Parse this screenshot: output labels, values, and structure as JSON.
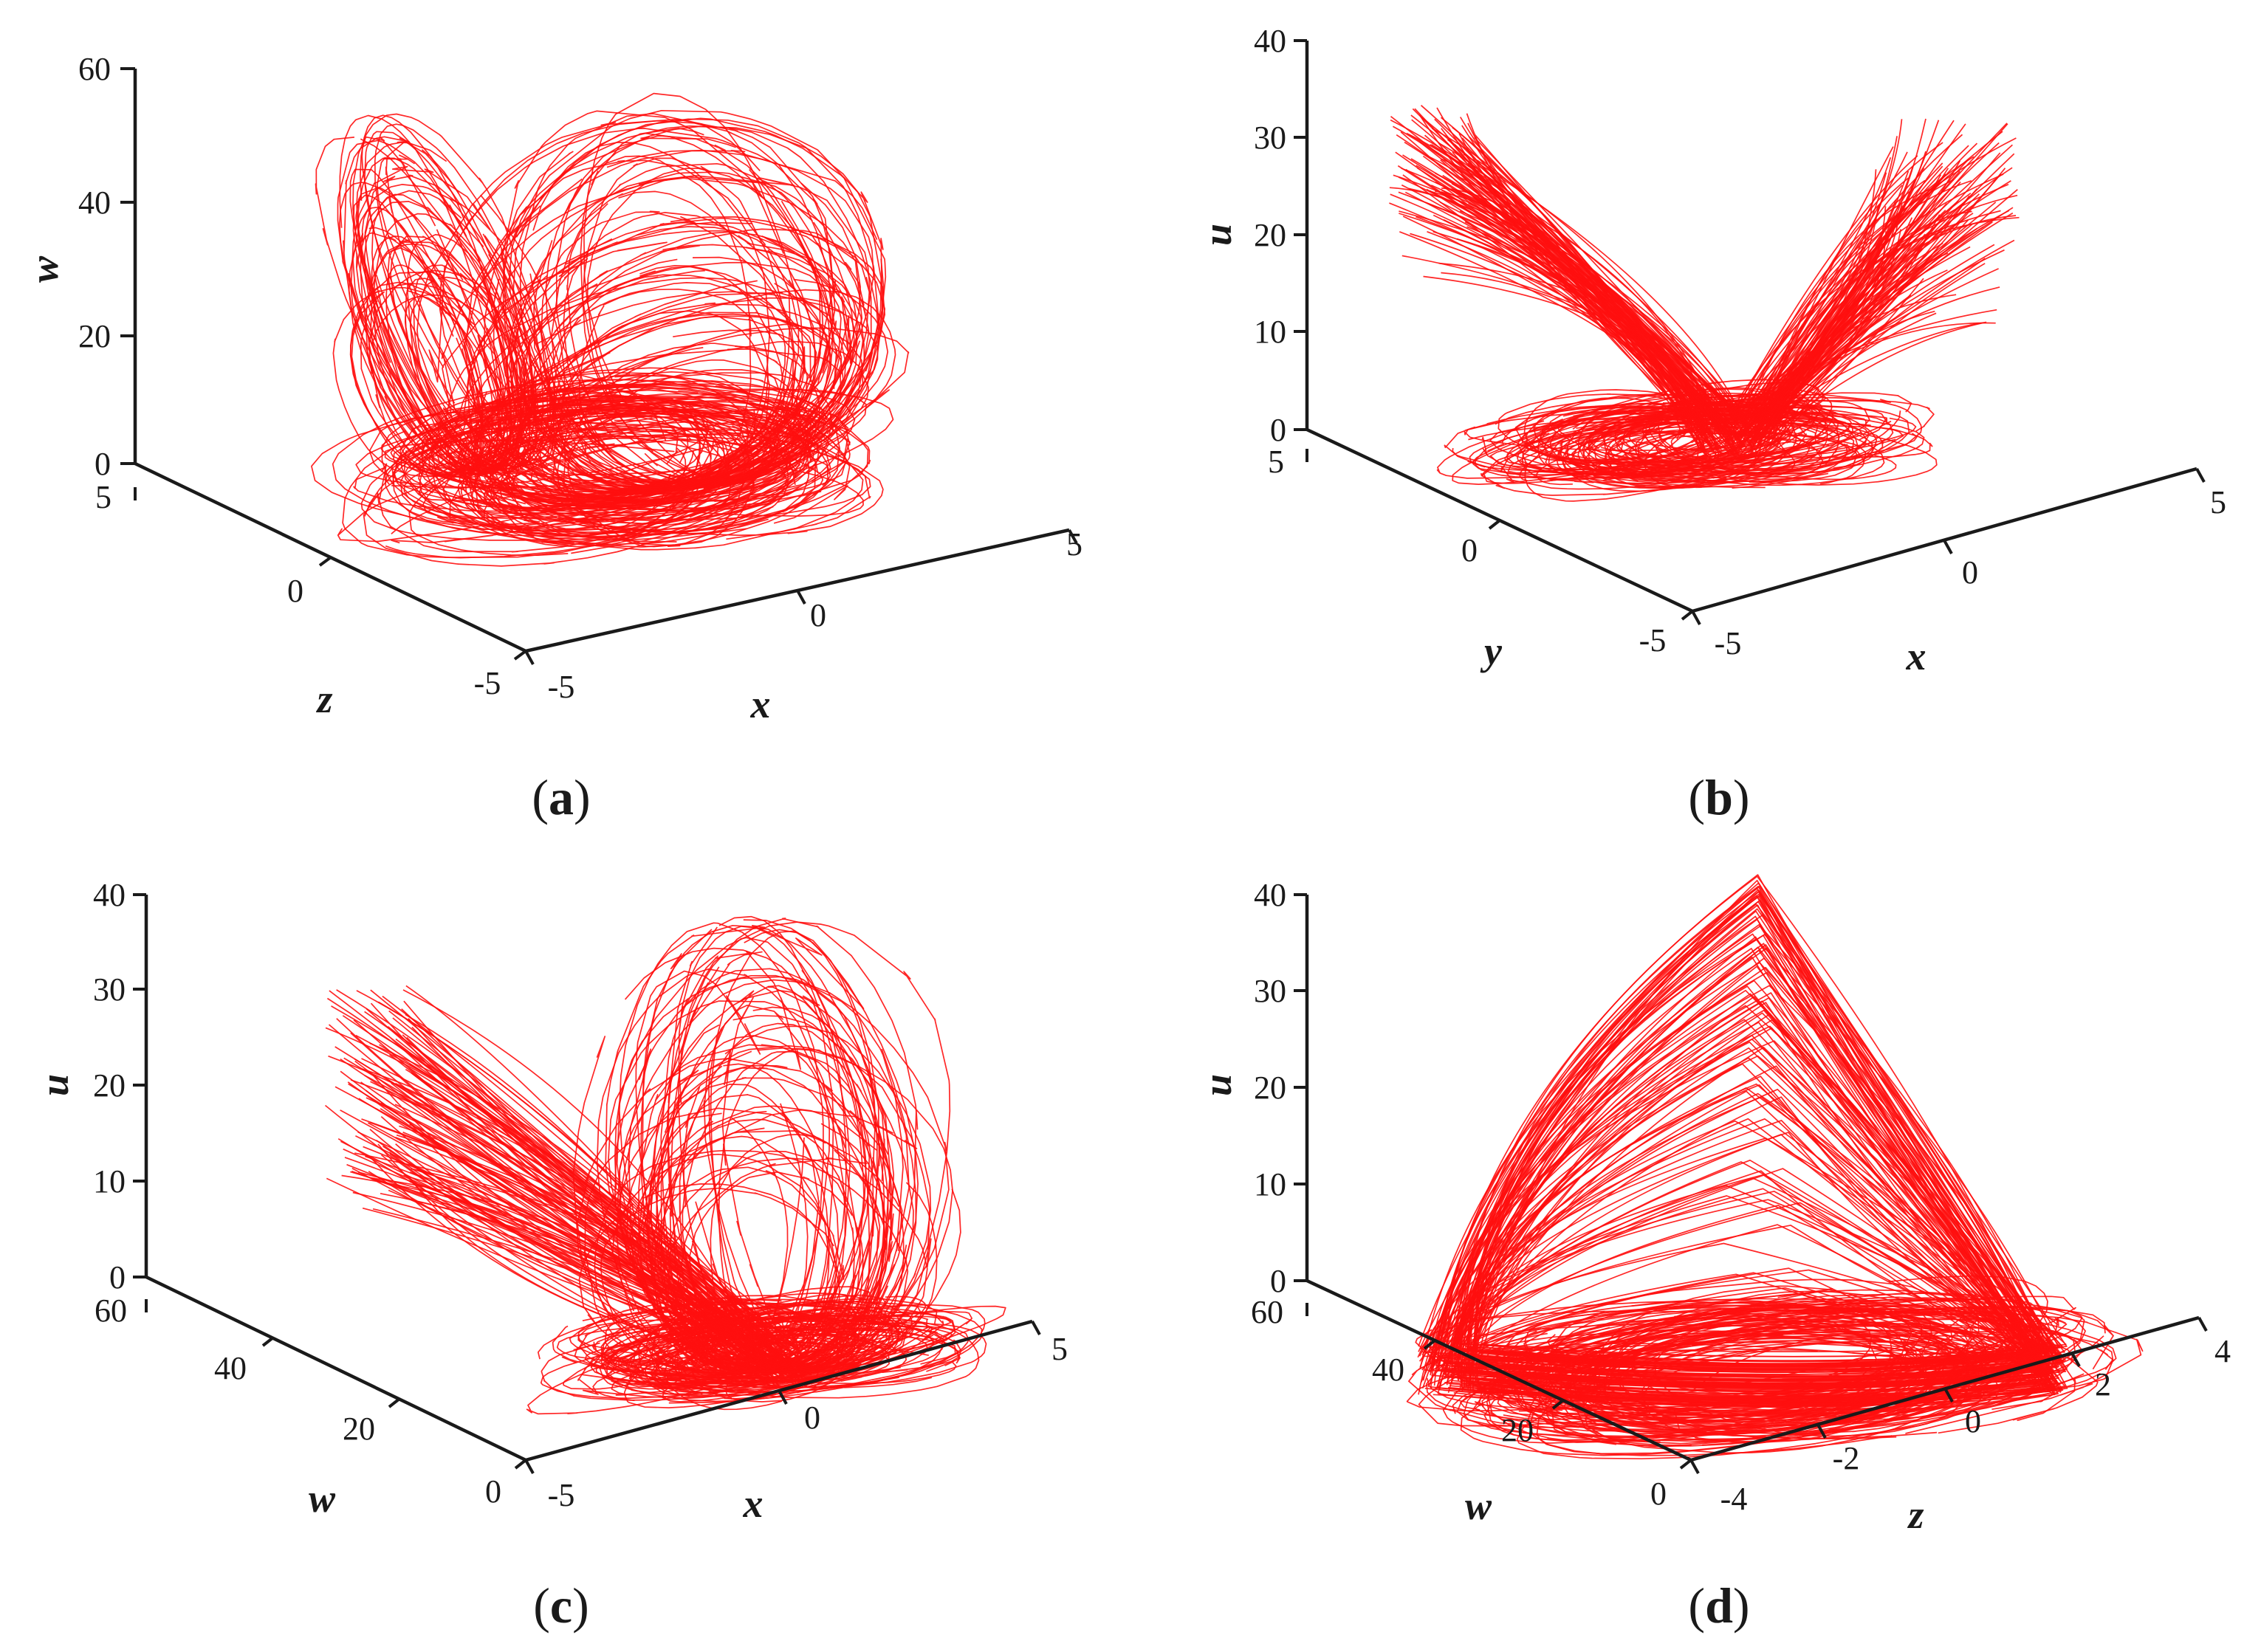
{
  "chart_data": [
    {
      "type": "line",
      "panel_label": "a",
      "axes": {
        "vertical": {
          "label": "w",
          "ticks": [
            "60",
            "40",
            "20",
            "0"
          ],
          "range": [
            0,
            60
          ]
        },
        "left_depth": {
          "label": "z",
          "ticks": [
            "5",
            "0",
            "-5"
          ],
          "range": [
            -5,
            5
          ]
        },
        "right_depth": {
          "label": "x",
          "ticks": [
            "-5",
            "0",
            "5"
          ],
          "range": [
            -5,
            5
          ]
        }
      },
      "series": [
        {
          "color": "#ff0000",
          "shape": "two-lobe butterfly, dense core near w=0, tall right lobe up to w≈60"
        }
      ],
      "grid": false
    },
    {
      "type": "line",
      "panel_label": "b",
      "axes": {
        "vertical": {
          "label": "u",
          "ticks": [
            "40",
            "30",
            "20",
            "10",
            "0"
          ],
          "range": [
            0,
            40
          ]
        },
        "left_depth": {
          "label": "y",
          "ticks": [
            "5",
            "0",
            "-5"
          ],
          "range": [
            -5,
            5
          ]
        },
        "right_depth": {
          "label": "x",
          "ticks": [
            "-5",
            "0",
            "5"
          ],
          "range": [
            -5,
            5
          ]
        }
      },
      "series": [
        {
          "color": "#ff0000",
          "shape": "V-shaped fan of loops, dense base near u=0, wings up to u≈32"
        }
      ],
      "grid": false
    },
    {
      "type": "line",
      "panel_label": "c",
      "axes": {
        "vertical": {
          "label": "u",
          "ticks": [
            "40",
            "30",
            "20",
            "10",
            "0"
          ],
          "range": [
            0,
            40
          ]
        },
        "left_depth": {
          "label": "w",
          "ticks": [
            "60",
            "40",
            "20",
            "0"
          ],
          "range": [
            0,
            60
          ]
        },
        "right_depth": {
          "label": "x",
          "ticks": [
            "-5",
            "0",
            "5"
          ],
          "range": [
            -5,
            5
          ]
        }
      },
      "series": [
        {
          "color": "#ff0000",
          "shape": "left wing fan plus tall loops up to u≈39, dense base"
        }
      ],
      "grid": false
    },
    {
      "type": "line",
      "panel_label": "d",
      "axes": {
        "vertical": {
          "label": "u",
          "ticks": [
            "40",
            "30",
            "20",
            "10",
            "0"
          ],
          "range": [
            0,
            40
          ]
        },
        "left_depth": {
          "label": "w",
          "ticks": [
            "60",
            "40",
            "20",
            "0"
          ],
          "range": [
            0,
            60
          ]
        },
        "right_depth": {
          "label": "z",
          "ticks": [
            "-4",
            "-2",
            "0",
            "2",
            "4"
          ],
          "range": [
            -4,
            4
          ]
        }
      },
      "series": [
        {
          "color": "#ff0000",
          "shape": "triangular cone of nested loops, apex u≈42, dense elliptical base"
        }
      ],
      "grid": false
    }
  ],
  "captions": [
    {
      "open": "(",
      "letter": "a",
      "close": ")"
    },
    {
      "open": "(",
      "letter": "b",
      "close": ")"
    },
    {
      "open": "(",
      "letter": "c",
      "close": ")"
    },
    {
      "open": "(",
      "letter": "d",
      "close": ")"
    }
  ],
  "colors": {
    "trajectory": "#ff1010",
    "axes": "#1a1a1a",
    "background": "#ffffff"
  }
}
